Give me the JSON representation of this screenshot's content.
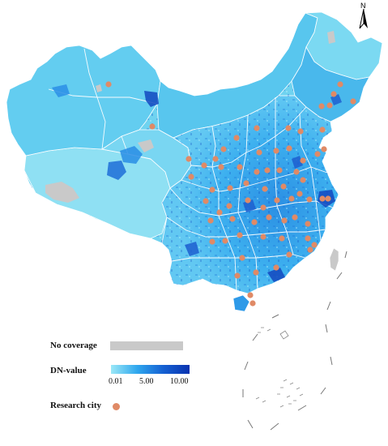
{
  "legend": {
    "no_coverage_label": "No coverage",
    "dn_label": "DN-value",
    "dn_ticks": [
      "0.01",
      "5.00",
      "10.00"
    ],
    "research_city_label": "Research city"
  },
  "north_arrow": {
    "letter": "N",
    "icon": "north-arrow-icon"
  },
  "colors": {
    "no_coverage": "#c9c9c9",
    "dn_low": "#9be8f7",
    "dn_mid": "#2fa7ee",
    "dn_high": "#0a33b0",
    "research_city": "#e08a66",
    "boundary": "#ffffff"
  },
  "research_city_count": 68
}
